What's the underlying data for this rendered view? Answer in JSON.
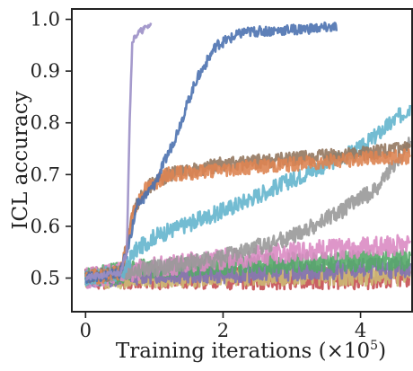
{
  "chart_data": {
    "type": "line",
    "xlabel": "Training iterations (×10",
    "xlabel_sup": "5",
    "xlabel_close": ")",
    "ylabel": "ICL accuracy",
    "xlim": [
      -0.2,
      4.75
    ],
    "ylim": [
      0.435,
      1.02
    ],
    "xticks": [
      0,
      2,
      4
    ],
    "yticks": [
      0.5,
      0.6,
      0.7,
      0.8,
      0.9,
      1.0
    ],
    "xtick_labels": [
      "0",
      "2",
      "4"
    ],
    "ytick_labels": [
      "0.5",
      "0.6",
      "0.7",
      "0.8",
      "0.9",
      "1.0"
    ],
    "grid": false,
    "series": [
      {
        "color": "#c44e52",
        "x_end": 4.72,
        "points": [
          [
            0,
            0.5
          ],
          [
            1,
            0.5
          ],
          [
            2,
            0.5
          ],
          [
            3,
            0.5
          ],
          [
            4.72,
            0.5
          ]
        ],
        "noise": 0.022,
        "seed": 11
      },
      {
        "color": "#ccb974",
        "x_end": 4.72,
        "points": [
          [
            0,
            0.5
          ],
          [
            1,
            0.5
          ],
          [
            2,
            0.505
          ],
          [
            3,
            0.505
          ],
          [
            4.72,
            0.505
          ]
        ],
        "noise": 0.02,
        "seed": 12
      },
      {
        "color": "#8172b3",
        "x_end": 4.72,
        "points": [
          [
            0,
            0.5
          ],
          [
            1,
            0.51
          ],
          [
            2,
            0.51
          ],
          [
            3,
            0.515
          ],
          [
            4.72,
            0.52
          ]
        ],
        "noise": 0.02,
        "seed": 13
      },
      {
        "color": "#55a868",
        "x_end": 4.72,
        "points": [
          [
            0,
            0.5
          ],
          [
            1,
            0.52
          ],
          [
            2,
            0.525
          ],
          [
            3,
            0.53
          ],
          [
            4.72,
            0.535
          ]
        ],
        "noise": 0.02,
        "seed": 14
      },
      {
        "color": "#da8bc3",
        "x_end": 4.72,
        "points": [
          [
            0,
            0.5
          ],
          [
            0.5,
            0.51
          ],
          [
            1.5,
            0.53
          ],
          [
            3,
            0.55
          ],
          [
            4.72,
            0.565
          ]
        ],
        "noise": 0.02,
        "seed": 15
      },
      {
        "color": "#999999",
        "x_end": 4.72,
        "points": [
          [
            0,
            0.5
          ],
          [
            0.5,
            0.51
          ],
          [
            1,
            0.52
          ],
          [
            2,
            0.54
          ],
          [
            3,
            0.58
          ],
          [
            3.6,
            0.62
          ],
          [
            4.2,
            0.67
          ],
          [
            4.72,
            0.76
          ]
        ],
        "noise": 0.016,
        "seed": 16
      },
      {
        "color": "#64b5cd",
        "x_end": 4.72,
        "points": [
          [
            0,
            0.5
          ],
          [
            0.55,
            0.51
          ],
          [
            0.7,
            0.55
          ],
          [
            1,
            0.58
          ],
          [
            2,
            0.63
          ],
          [
            3,
            0.69
          ],
          [
            4,
            0.75
          ],
          [
            4.72,
            0.83
          ]
        ],
        "noise": 0.016,
        "seed": 17
      },
      {
        "color": "#937860",
        "x_end": 4.72,
        "points": [
          [
            0,
            0.5
          ],
          [
            0.5,
            0.51
          ],
          [
            0.6,
            0.56
          ],
          [
            0.7,
            0.63
          ],
          [
            0.85,
            0.67
          ],
          [
            1.2,
            0.7
          ],
          [
            2,
            0.72
          ],
          [
            3,
            0.73
          ],
          [
            4,
            0.74
          ],
          [
            4.72,
            0.75
          ]
        ],
        "noise": 0.014,
        "seed": 18
      },
      {
        "color": "#dd8452",
        "x_end": 4.72,
        "points": [
          [
            0,
            0.5
          ],
          [
            0.5,
            0.51
          ],
          [
            0.6,
            0.56
          ],
          [
            0.7,
            0.63
          ],
          [
            0.85,
            0.67
          ],
          [
            1.2,
            0.7
          ],
          [
            2,
            0.71
          ],
          [
            3,
            0.72
          ],
          [
            4,
            0.73
          ],
          [
            4.72,
            0.735
          ]
        ],
        "noise": 0.014,
        "seed": 19
      },
      {
        "color": "#4c72b0",
        "x_end": 3.65,
        "points": [
          [
            0,
            0.5
          ],
          [
            0.5,
            0.51
          ],
          [
            0.6,
            0.55
          ],
          [
            0.75,
            0.64
          ],
          [
            1,
            0.68
          ],
          [
            1.3,
            0.77
          ],
          [
            1.6,
            0.88
          ],
          [
            1.9,
            0.95
          ],
          [
            2.3,
            0.975
          ],
          [
            3,
            0.98
          ],
          [
            3.65,
            0.985
          ]
        ],
        "noise": 0.01,
        "seed": 20
      },
      {
        "color": "#9b8fc7",
        "x_end": 0.95,
        "points": [
          [
            0,
            0.5
          ],
          [
            0.5,
            0.51
          ],
          [
            0.6,
            0.55
          ],
          [
            0.64,
            0.8
          ],
          [
            0.68,
            0.96
          ],
          [
            0.78,
            0.975
          ],
          [
            0.95,
            0.99
          ]
        ],
        "noise": 0.006,
        "seed": 21
      }
    ]
  }
}
